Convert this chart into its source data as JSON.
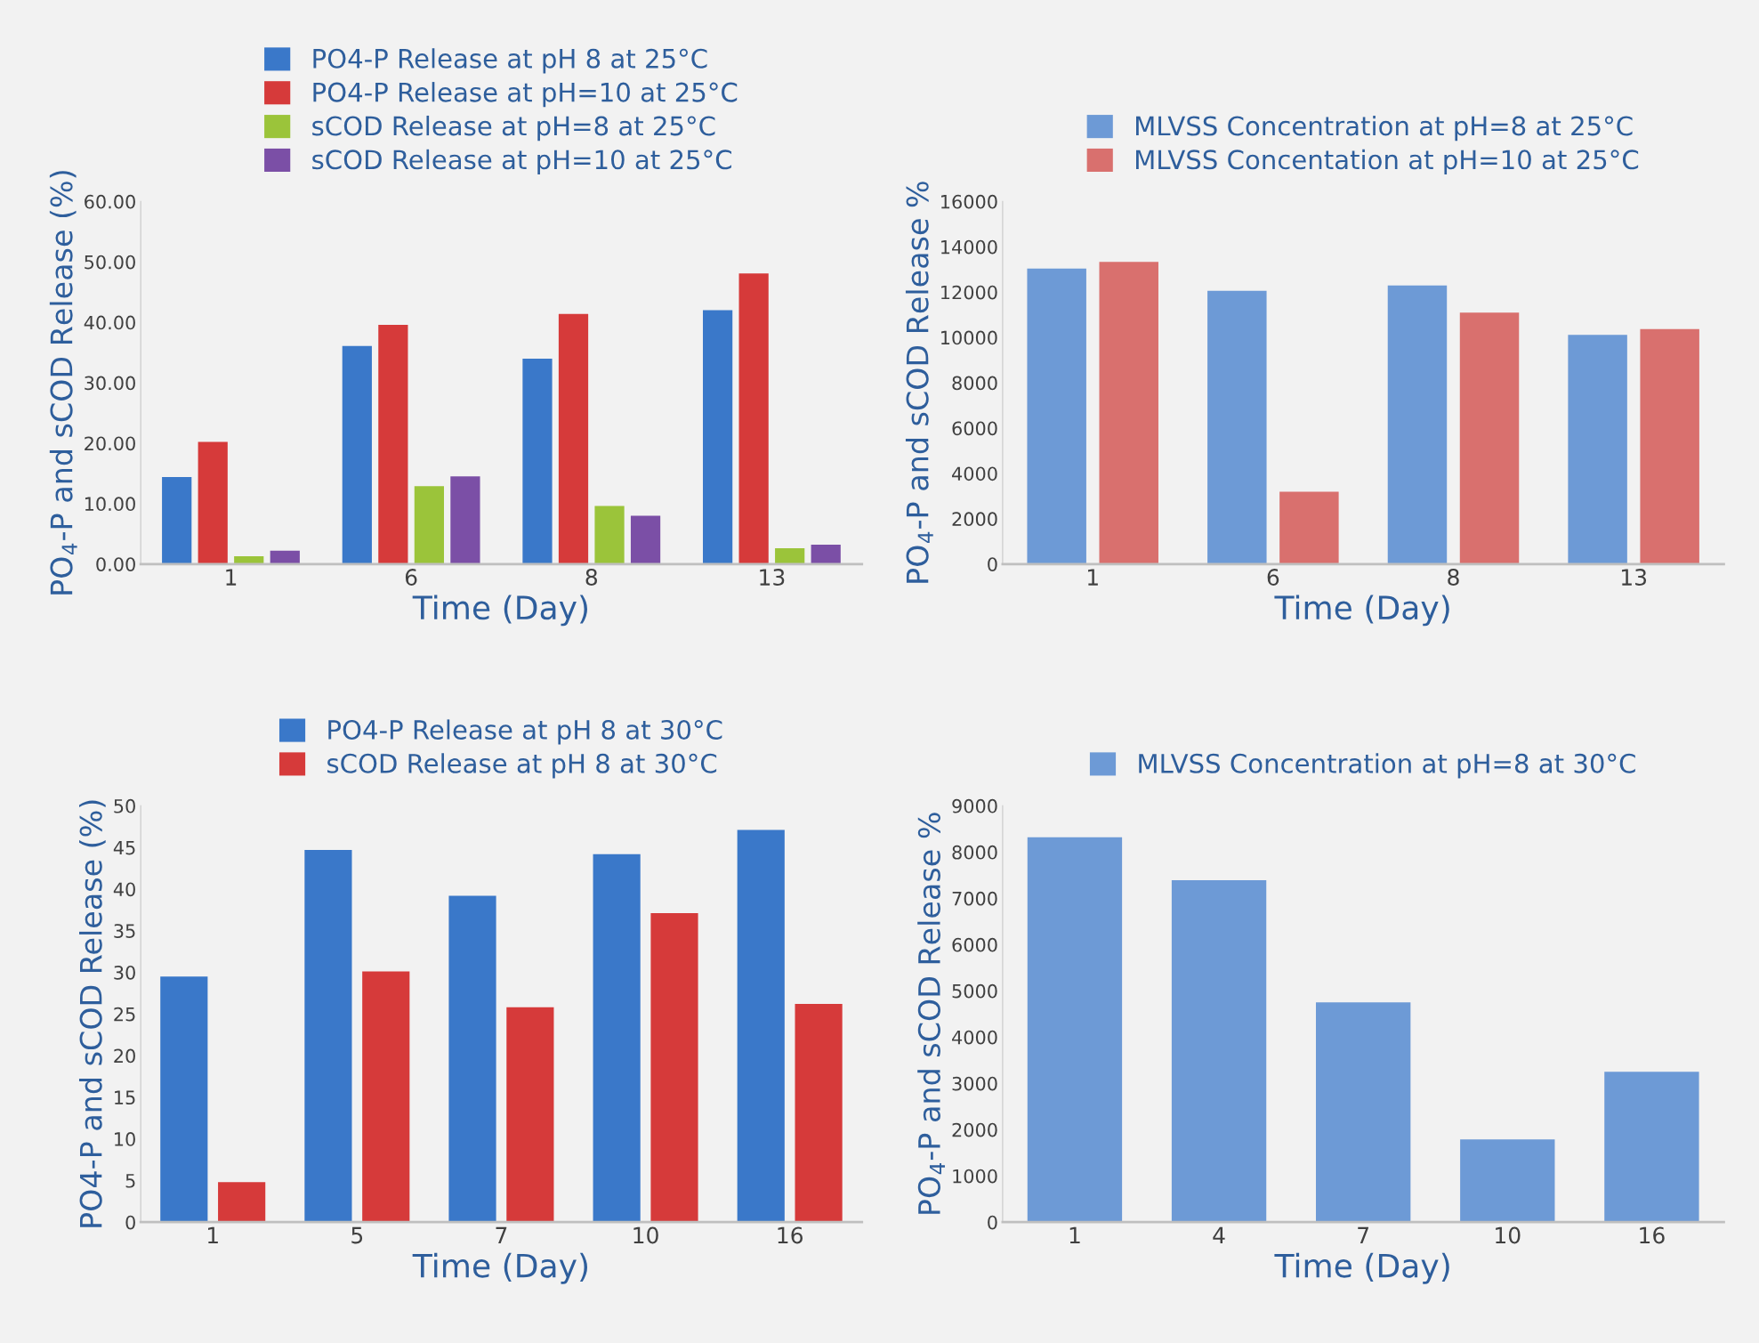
{
  "chart_data": [
    {
      "type": "bar",
      "categories": [
        "1",
        "6",
        "8",
        "13"
      ],
      "xlabel": "Time (Day)",
      "ylabel": "PO$_{4}$-P and sCOD Release (%)",
      "ylim": [
        0,
        60
      ],
      "yticks": [
        {
          "value": 0,
          "label": "0.00"
        },
        {
          "value": 10,
          "label": "10.00"
        },
        {
          "value": 20,
          "label": "20.00"
        },
        {
          "value": 30,
          "label": "30.00"
        },
        {
          "value": 40,
          "label": "40.00"
        },
        {
          "value": 50,
          "label": "50.00"
        },
        {
          "value": 60,
          "label": "60.00"
        }
      ],
      "legend": "top",
      "grid": false,
      "series": [
        {
          "name": "PO4-P Release at pH 8 at 25°C",
          "color": "#3a78c9",
          "values": [
            14.4,
            36.1,
            34.0,
            42.0
          ]
        },
        {
          "name": "PO4-P Release at pH=10 at 25°C",
          "color": "#d63a3a",
          "values": [
            20.2,
            39.6,
            41.4,
            48.1
          ]
        },
        {
          "name": "sCOD Release at pH=8 at 25°C",
          "color": "#9bc43a",
          "values": [
            1.3,
            12.9,
            9.6,
            2.6
          ]
        },
        {
          "name": "sCOD Release at pH=10 at 25°C",
          "color": "#7b4fa6",
          "values": [
            2.2,
            14.5,
            8.0,
            3.2
          ]
        }
      ]
    },
    {
      "type": "bar",
      "categories": [
        "1",
        "6",
        "8",
        "13"
      ],
      "xlabel": "Time (Day)",
      "ylabel": "PO$_{4}$-P and sCOD Release %",
      "ylim": [
        0,
        16000
      ],
      "yticks": [
        0,
        2000,
        4000,
        6000,
        8000,
        10000,
        12000,
        14000,
        16000
      ],
      "legend": "top",
      "grid": false,
      "series": [
        {
          "name": "MLVSS Concentration at pH=8 at 25°C",
          "color": "#6d9ad6",
          "values": [
            13040,
            12060,
            12290,
            10110
          ]
        },
        {
          "name": "MLVSS Concentation at pH=10 at 25°C",
          "color": "#d9706e",
          "values": [
            13330,
            3190,
            11100,
            10370
          ]
        }
      ]
    },
    {
      "type": "bar",
      "categories": [
        "1",
        "5",
        "7",
        "10",
        "16"
      ],
      "xlabel": "Time (Day)",
      "ylabel": "PO4-P and sCOD Release (%)",
      "ylim": [
        0,
        50
      ],
      "yticks": [
        0,
        5,
        10,
        15,
        20,
        25,
        30,
        35,
        40,
        45,
        50
      ],
      "legend": "top",
      "grid": false,
      "series": [
        {
          "name": "PO4-P Release at pH 8 at 30°C",
          "color": "#3a78c9",
          "values": [
            29.5,
            44.7,
            39.2,
            44.2,
            47.1
          ]
        },
        {
          "name": "sCOD Release at pH 8 at 30°C",
          "color": "#d63a3a",
          "values": [
            4.8,
            30.1,
            25.8,
            37.1,
            26.2
          ]
        }
      ]
    },
    {
      "type": "bar",
      "categories": [
        "1",
        "4",
        "7",
        "10",
        "16"
      ],
      "xlabel": "Time (Day)",
      "ylabel": "PO$_{4}$-P and sCOD Release %",
      "ylim": [
        0,
        9000
      ],
      "yticks": [
        0,
        1000,
        2000,
        3000,
        4000,
        5000,
        6000,
        7000,
        8000,
        9000
      ],
      "legend": "top",
      "grid": false,
      "series": [
        {
          "name": "MLVSS Concentration at pH=8 at 30°C",
          "color": "#6d9ad6",
          "values": [
            8320,
            7390,
            4750,
            1790,
            3250
          ]
        }
      ]
    }
  ]
}
